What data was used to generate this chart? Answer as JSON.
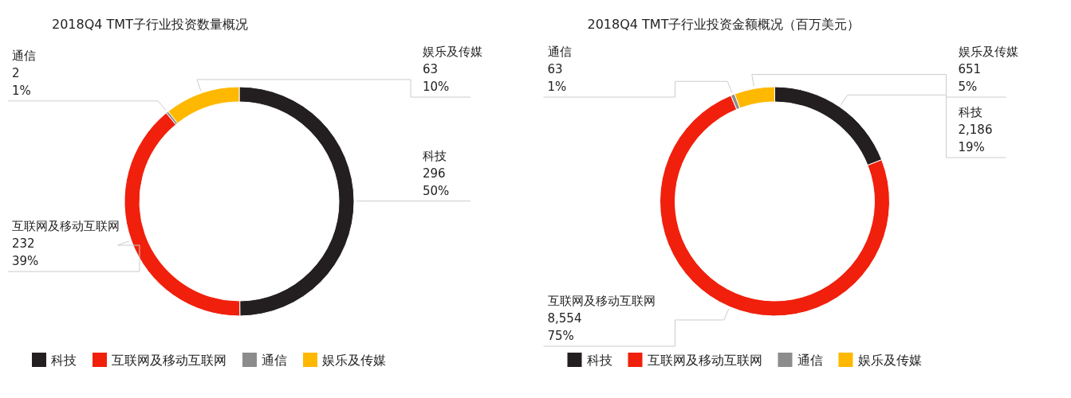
{
  "chart_data": [
    {
      "type": "donut",
      "title": "2018Q4 TMT子行业投资数量概况",
      "categories": [
        "科技",
        "互联网及移动互联网",
        "通信",
        "娱乐及传媒"
      ],
      "values": [
        296,
        232,
        2,
        63
      ],
      "colors": [
        "#231f20",
        "#f0200c",
        "#8c8c8c",
        "#ffb800"
      ],
      "value_labels": [
        "296\n50%",
        "232\n39%",
        "2\n1%",
        "63\n10%"
      ],
      "legend": "bottom"
    },
    {
      "type": "donut",
      "title": "2018Q4 TMT子行业投资金额概况（百万美元）",
      "categories": [
        "科技",
        "互联网及移动互联网",
        "通信",
        "娱乐及传媒"
      ],
      "values": [
        2186,
        8554,
        63,
        651
      ],
      "colors": [
        "#231f20",
        "#f0200c",
        "#8c8c8c",
        "#ffb800"
      ],
      "value_labels": [
        "2,186\n19%",
        "8,554\n75%",
        "63\n1%",
        "651\n5%"
      ],
      "legend": "bottom"
    }
  ]
}
